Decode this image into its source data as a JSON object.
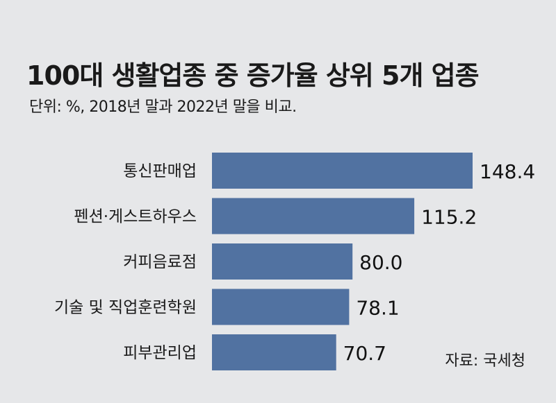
{
  "title": "100대 생활업종 중 증가율 상위 5개 업종",
  "subtitle": "단위: %,  2018년 말과 2022년 말을 비교.",
  "source": "자료: 국세청",
  "colors": {
    "bar": "#5172a1",
    "background": "#e6e7e9"
  },
  "chart_data": {
    "type": "bar",
    "orientation": "horizontal",
    "title": "100대 생활업종 중 증가율 상위 5개 업종",
    "subtitle": "단위: %,  2018년 말과 2022년 말을 비교.",
    "categories": [
      "통신판매업",
      "펜션·게스트하우스",
      "커피음료점",
      "기술 및 직업훈련학원",
      "피부관리업"
    ],
    "values": [
      148.4,
      115.2,
      80.0,
      78.1,
      70.7
    ],
    "value_labels": [
      "148.4",
      "115.2",
      "80.0",
      "78.1",
      "70.7"
    ],
    "xlim": [
      0,
      160
    ],
    "grid": false,
    "legend": "none"
  }
}
